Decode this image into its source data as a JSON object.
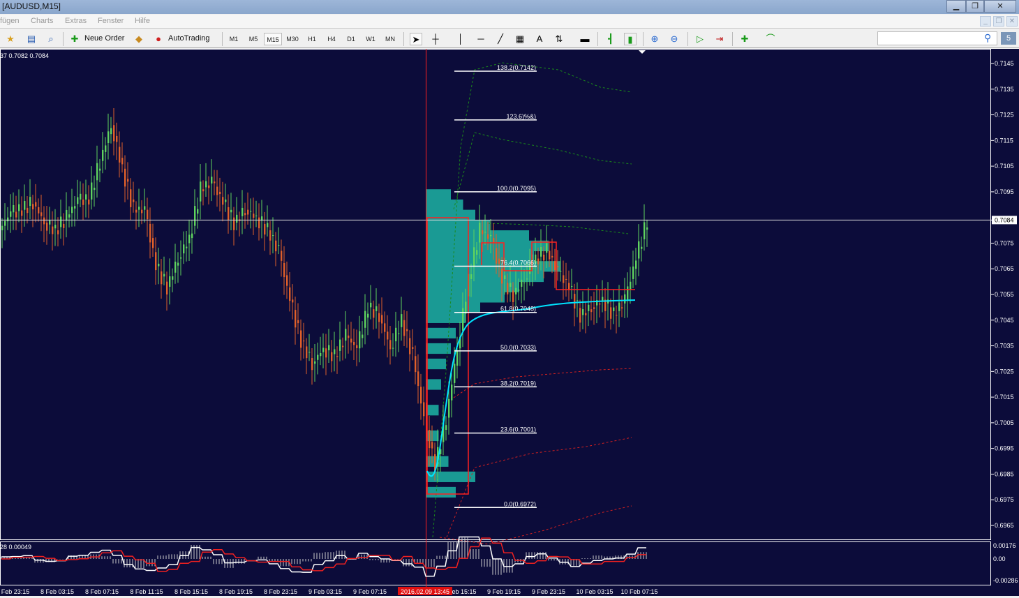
{
  "window": {
    "title": "[AUDUSD,M15]"
  },
  "menu": [
    "fügen",
    "Charts",
    "Extras",
    "Fenster",
    "Hilfe"
  ],
  "toolbar": {
    "new_order": "Neue Order",
    "autotrading": "AutoTrading",
    "timeframes": [
      "M1",
      "M5",
      "M15",
      "M30",
      "H1",
      "H4",
      "D1",
      "W1",
      "MN"
    ],
    "selected_timeframe": "M15",
    "search_placeholder": "",
    "notification_count": "5"
  },
  "colors": {
    "background": "#0c0c3a",
    "bull": "#5fd35f",
    "bear": "#e0602a",
    "profile": "#1a9a94",
    "fib": "#ffffff",
    "vwap": "#00e5ff",
    "box": "#ff2020",
    "crosshair": "#ff2020"
  },
  "chart_data": {
    "type": "candlestick",
    "symbol": "AUDUSD",
    "timeframe": "M15",
    "ohlc_label": "37 0.7082 0.7084",
    "price_axis": {
      "ylim": [
        0.696,
        0.7152
      ],
      "ticks": [
        "0.7145",
        "0.7135",
        "0.7125",
        "0.7115",
        "0.7105",
        "0.7095",
        "0.7084",
        "0.7075",
        "0.7065",
        "0.7055",
        "0.7045",
        "0.7035",
        "0.7025",
        "0.7015",
        "0.7005",
        "0.6995",
        "0.6985",
        "0.6975",
        "0.6965"
      ],
      "current_price": "0.7084"
    },
    "time_axis": {
      "ticks": [
        "Feb 23:15",
        "8 Feb 03:15",
        "8 Feb 07:15",
        "8 Feb 11:15",
        "8 Feb 15:15",
        "8 Feb 19:15",
        "8 Feb 23:15",
        "9 Feb 03:15",
        "9 Feb 07:15",
        "eb 15:15",
        "9 Feb 19:15",
        "9 Feb 23:15",
        "10 Feb 03:15",
        "10 Feb 07:15"
      ],
      "cursor_label": "2016.02.09 13:45"
    },
    "closes_every_hour": [
      0.708,
      0.7087,
      0.7088,
      0.7091,
      0.7083,
      0.708,
      0.7085,
      0.7092,
      0.7092,
      0.7107,
      0.7121,
      0.7104,
      0.7088,
      0.7088,
      0.7066,
      0.7058,
      0.7069,
      0.7077,
      0.7096,
      0.7099,
      0.7091,
      0.7083,
      0.7088,
      0.7085,
      0.708,
      0.7072,
      0.7053,
      0.7037,
      0.7028,
      0.7034,
      0.7031,
      0.7039,
      0.7034,
      0.705,
      0.7047,
      0.7034,
      0.7045,
      0.7031,
      0.7007,
      0.6988,
      0.7007,
      0.7034,
      0.7061,
      0.708,
      0.7077,
      0.7061,
      0.7055,
      0.7061,
      0.7069,
      0.7072,
      0.7064,
      0.7058,
      0.7047,
      0.705,
      0.7053,
      0.7047,
      0.7053,
      0.7069,
      0.7084
    ],
    "fibonacci": [
      {
        "label": "138.2(0.7142)",
        "price": 0.7142
      },
      {
        "label": "123.6)%&)",
        "price": 0.7123
      },
      {
        "label": "100.0(0.7095)",
        "price": 0.7095
      },
      {
        "label": "76.4(0.7066)",
        "price": 0.7066
      },
      {
        "label": "61.8(0.7048)",
        "price": 0.7048
      },
      {
        "label": "50.0(0.7033)",
        "price": 0.7033
      },
      {
        "label": "38.2(0.7019)",
        "price": 0.7019
      },
      {
        "label": "23.6(0.7001)",
        "price": 0.7001
      },
      {
        "label": "0.0(0.6972)",
        "price": 0.6972
      }
    ],
    "volume_profile": [
      [
        0.7094,
        1.0
      ],
      [
        0.709,
        1.5
      ],
      [
        0.7086,
        2.0
      ],
      [
        0.7082,
        2.6
      ],
      [
        0.7078,
        4.2
      ],
      [
        0.7074,
        5.0
      ],
      [
        0.707,
        4.4
      ],
      [
        0.7066,
        5.5
      ],
      [
        0.7062,
        4.8
      ],
      [
        0.7058,
        3.8
      ],
      [
        0.7054,
        3.2
      ],
      [
        0.705,
        2.2
      ],
      [
        0.7046,
        1.6
      ],
      [
        0.704,
        1.2
      ],
      [
        0.7034,
        1.0
      ],
      [
        0.7028,
        0.8
      ],
      [
        0.702,
        0.6
      ],
      [
        0.701,
        0.5
      ],
      [
        0.7,
        0.5
      ],
      [
        0.699,
        0.9
      ],
      [
        0.6984,
        2.0
      ],
      [
        0.6978,
        1.2
      ]
    ],
    "macd": {
      "label": "28 0.00049",
      "ticks": [
        "0.00176",
        "0.00",
        "-0.00286"
      ],
      "ylim": [
        -0.00286,
        0.00176
      ]
    }
  }
}
